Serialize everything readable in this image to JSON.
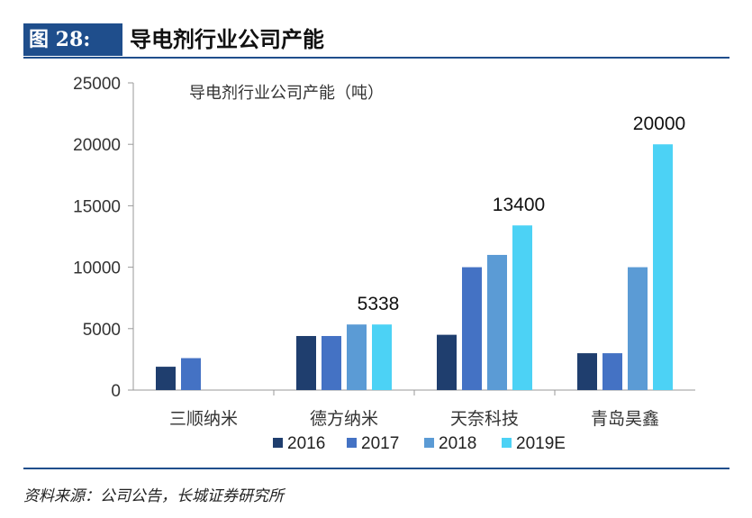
{
  "figure": {
    "label": "图 28:",
    "title": "导电剂行业公司产能",
    "source": "资料来源：公司公告，长城证券研究所"
  },
  "colors": {
    "accent": "#1f4e8c",
    "series": [
      "#1f3e6e",
      "#4472c4",
      "#5b9bd5",
      "#4cd2f5"
    ]
  },
  "chart_data": {
    "type": "bar",
    "title": "导电剂行业公司产能（吨）",
    "categories": [
      "三顺纳米",
      "德方纳米",
      "天奈科技",
      "青岛昊鑫"
    ],
    "series": [
      {
        "name": "2016",
        "values": [
          1900,
          4400,
          4500,
          3000
        ]
      },
      {
        "name": "2017",
        "values": [
          2600,
          4400,
          10000,
          3000
        ]
      },
      {
        "name": "2018",
        "values": [
          null,
          5338,
          11000,
          10000
        ]
      },
      {
        "name": "2019E",
        "values": [
          null,
          5338,
          13400,
          20000
        ]
      }
    ],
    "ylim": [
      0,
      25000
    ],
    "yticks": [
      "0",
      "5000",
      "10000",
      "15000",
      "20000",
      "25000"
    ],
    "data_labels": [
      {
        "category": "德方纳米",
        "series": "2019E",
        "text": "5338"
      },
      {
        "category": "天奈科技",
        "series": "2019E",
        "text": "13400"
      },
      {
        "category": "青岛昊鑫",
        "series": "2019E",
        "text": "20000"
      }
    ],
    "legend_position": "bottom",
    "xlabel": "",
    "ylabel": ""
  }
}
